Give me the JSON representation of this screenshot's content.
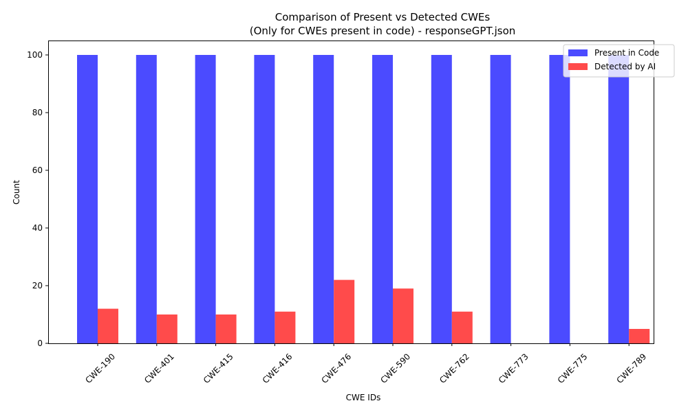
{
  "chart_data": {
    "type": "bar",
    "title_line1": "Comparison of Present vs Detected CWEs",
    "title_line2": "(Only for CWEs present in code) - responseGPT.json",
    "xlabel": "CWE IDs",
    "ylabel": "Count",
    "ylim": [
      0,
      105
    ],
    "yticks": [
      0,
      20,
      40,
      60,
      80,
      100
    ],
    "categories": [
      "CWE-190",
      "CWE-401",
      "CWE-415",
      "CWE-416",
      "CWE-476",
      "CWE-590",
      "CWE-762",
      "CWE-773",
      "CWE-775",
      "CWE-789"
    ],
    "series": [
      {
        "name": "Present in Code",
        "color": "#4b4bff",
        "values": [
          100,
          100,
          100,
          100,
          100,
          100,
          100,
          100,
          100,
          100
        ]
      },
      {
        "name": "Detected by AI",
        "color": "#ff4b4b",
        "values": [
          12,
          10,
          10,
          11,
          22,
          19,
          11,
          0,
          0,
          5
        ]
      }
    ],
    "legend_position": "top-right",
    "grid": false
  }
}
